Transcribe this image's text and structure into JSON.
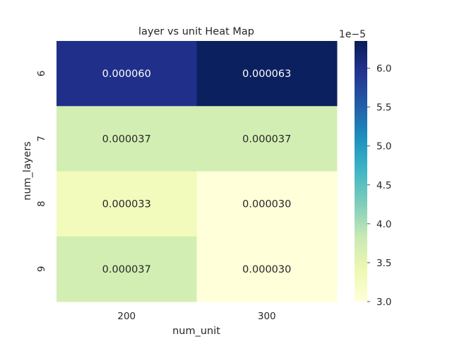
{
  "chart_data": {
    "type": "heatmap",
    "title": "layer vs unit Heat Map",
    "xlabel": "num_unit",
    "ylabel": "num_layers",
    "x_categories": [
      "200",
      "300"
    ],
    "y_categories": [
      "6",
      "7",
      "8",
      "9"
    ],
    "values": [
      [
        6e-05,
        6.3e-05
      ],
      [
        3.7e-05,
        3.7e-05
      ],
      [
        3.3e-05,
        3e-05
      ],
      [
        3.7e-05,
        3e-05
      ]
    ],
    "cell_labels": [
      [
        "0.000060",
        "0.000063"
      ],
      [
        "0.000037",
        "0.000037"
      ],
      [
        "0.000033",
        "0.000030"
      ],
      [
        "0.000037",
        "0.000030"
      ]
    ],
    "colorbar": {
      "range": [
        3e-05,
        6.35e-05
      ],
      "ticks": [
        3.0,
        3.5,
        4.0,
        4.5,
        5.0,
        5.5,
        6.0
      ],
      "tick_labels": [
        "3.0",
        "3.5",
        "4.0",
        "4.5",
        "5.0",
        "5.5",
        "6.0"
      ],
      "offset_label": "1e−5",
      "colormap": "YlGnBu",
      "colormap_stops": [
        "#ffffd9",
        "#edf8b1",
        "#c7e9b4",
        "#7fcdbb",
        "#41b6c4",
        "#1d91c0",
        "#225ea8",
        "#253494",
        "#081d58"
      ]
    },
    "grid": false
  }
}
